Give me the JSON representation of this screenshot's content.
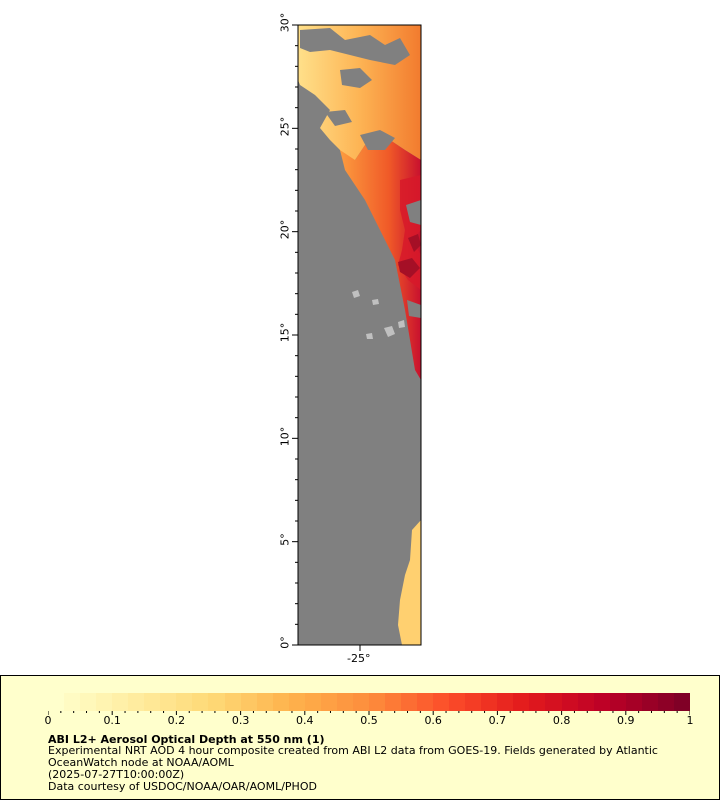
{
  "map": {
    "latitude_labels": [
      "0°",
      "5°",
      "10°",
      "15°",
      "20°",
      "25°",
      "30°"
    ],
    "longitude_labels": [
      "-25°"
    ],
    "land_color": "#808080",
    "island_color": "#c0c0c0"
  },
  "legend": {
    "title": "ABI L2+ Aerosol Optical Depth at 550 nm (1)",
    "description_line1": "Experimental NRT AOD 4 hour composite created from ABI L2 data from GOES-19. Fields generated by Atlantic",
    "description_line2": "OceanWatch node at NOAA/AOML",
    "timestamp": "(2025-07-27T10:00:00Z)",
    "credit": "Data courtesy of USDOC/NOAA/OAR/AOML/PHOD",
    "colorbar_labels": [
      "0",
      "0.1",
      "0.2",
      "0.3",
      "0.4",
      "0.5",
      "0.6",
      "0.7",
      "0.8",
      "0.9",
      "1"
    ],
    "colorbar_colors": [
      "#ffffcc",
      "#ffeda0",
      "#fed976",
      "#feb24c",
      "#fd8d3c",
      "#fc4e2a",
      "#e31a1c",
      "#bd0026",
      "#800026"
    ]
  }
}
